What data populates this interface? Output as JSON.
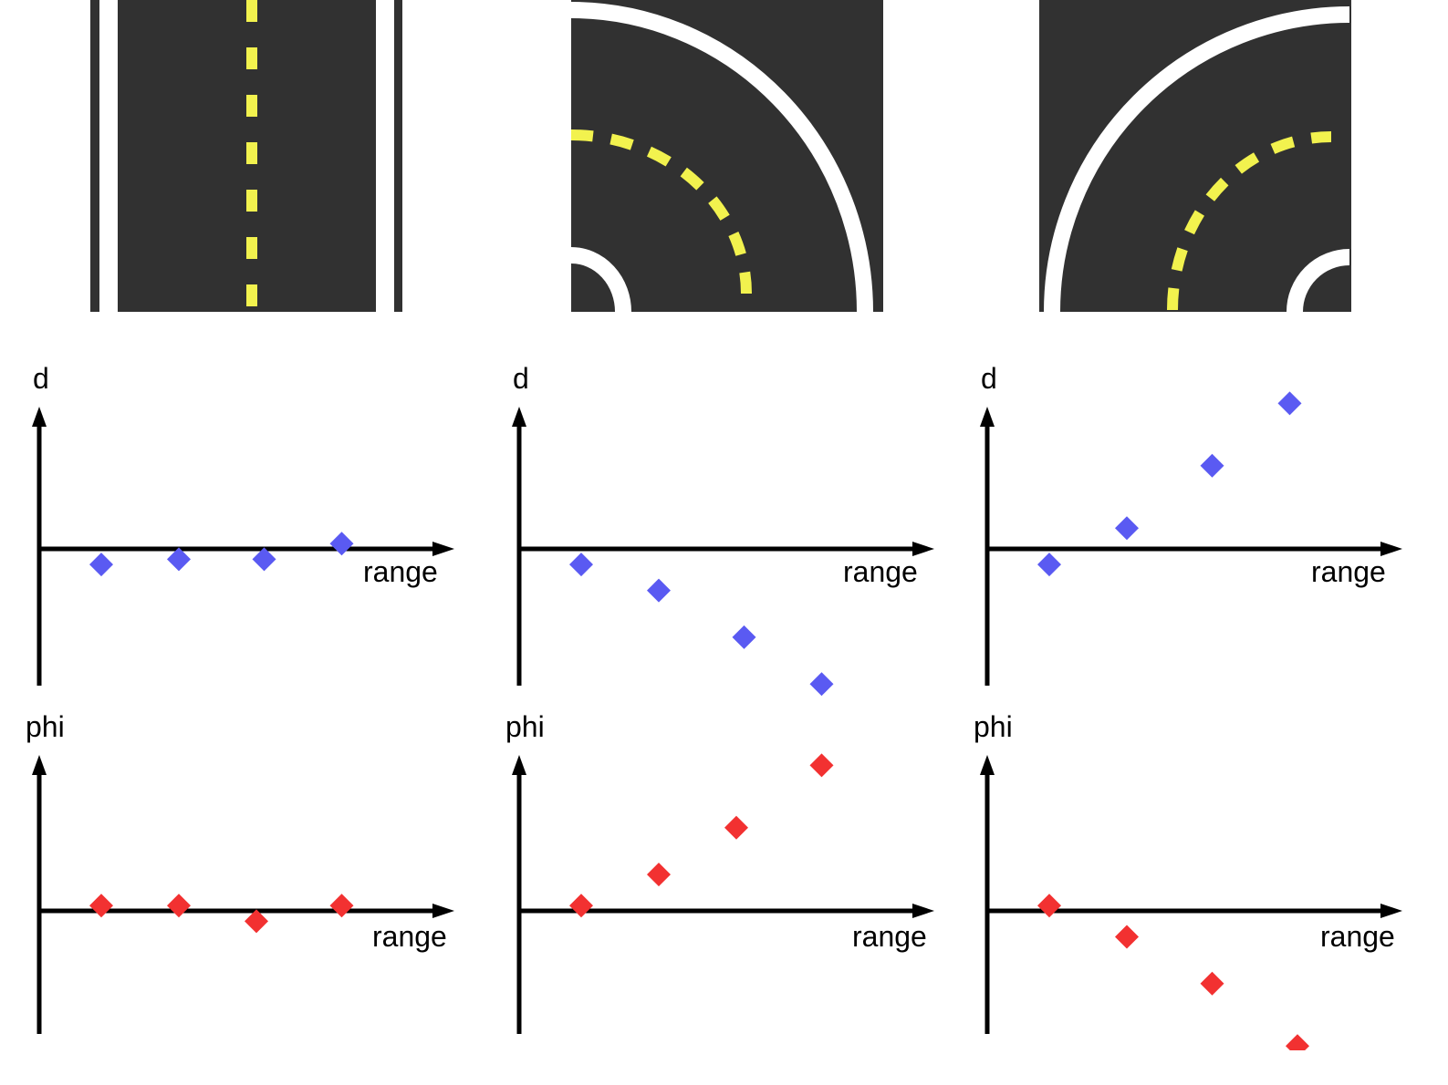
{
  "colors": {
    "asphalt": "#313131",
    "edge_line": "#ffffff",
    "center_line": "#f2f24e",
    "d_marker": "#5a5af2",
    "phi_marker": "#f23131",
    "axis": "#000000"
  },
  "tiles": [
    {
      "name": "straight-road-tile",
      "kind": "straight"
    },
    {
      "name": "right-curve-road-tile",
      "kind": "curve-right"
    },
    {
      "name": "left-curve-road-tile",
      "kind": "curve-left"
    }
  ],
  "chart_data": [
    {
      "type": "scatter",
      "ylabel": "d",
      "xlabel": "range",
      "marker": "diamond",
      "color": "#5a5af2",
      "xlim": [
        0,
        5
      ],
      "ylim": [
        -4,
        4
      ],
      "x": [
        0.8,
        1.8,
        2.9,
        3.9
      ],
      "y": [
        -0.3,
        -0.2,
        -0.2,
        0.1
      ]
    },
    {
      "type": "scatter",
      "ylabel": "d",
      "xlabel": "range",
      "marker": "diamond",
      "color": "#5a5af2",
      "xlim": [
        0,
        5
      ],
      "ylim": [
        -4,
        4
      ],
      "x": [
        0.8,
        1.8,
        2.9,
        3.9
      ],
      "y": [
        -0.3,
        -0.8,
        -1.7,
        -2.6
      ]
    },
    {
      "type": "scatter",
      "ylabel": "d",
      "xlabel": "range",
      "marker": "diamond",
      "color": "#5a5af2",
      "xlim": [
        0,
        5
      ],
      "ylim": [
        -4,
        4
      ],
      "x": [
        0.8,
        1.8,
        2.9,
        3.9
      ],
      "y": [
        -0.3,
        0.4,
        1.6,
        2.8
      ]
    },
    {
      "type": "scatter",
      "ylabel": "phi",
      "xlabel": "range",
      "marker": "diamond",
      "color": "#f23131",
      "xlim": [
        0,
        5
      ],
      "ylim": [
        -4,
        4
      ],
      "x": [
        0.8,
        1.8,
        2.8,
        3.9
      ],
      "y": [
        0.1,
        0.1,
        -0.2,
        0.1
      ]
    },
    {
      "type": "scatter",
      "ylabel": "phi",
      "xlabel": "range",
      "marker": "diamond",
      "color": "#f23131",
      "xlim": [
        0,
        5
      ],
      "ylim": [
        -4,
        4
      ],
      "x": [
        0.8,
        1.8,
        2.8,
        3.9
      ],
      "y": [
        0.1,
        0.7,
        1.6,
        2.8
      ]
    },
    {
      "type": "scatter",
      "ylabel": "phi",
      "xlabel": "range",
      "marker": "diamond",
      "color": "#f23131",
      "xlim": [
        0,
        5
      ],
      "ylim": [
        -4,
        4
      ],
      "x": [
        0.8,
        1.8,
        2.9,
        4.0
      ],
      "y": [
        0.1,
        -0.5,
        -1.4,
        -2.6
      ]
    }
  ]
}
